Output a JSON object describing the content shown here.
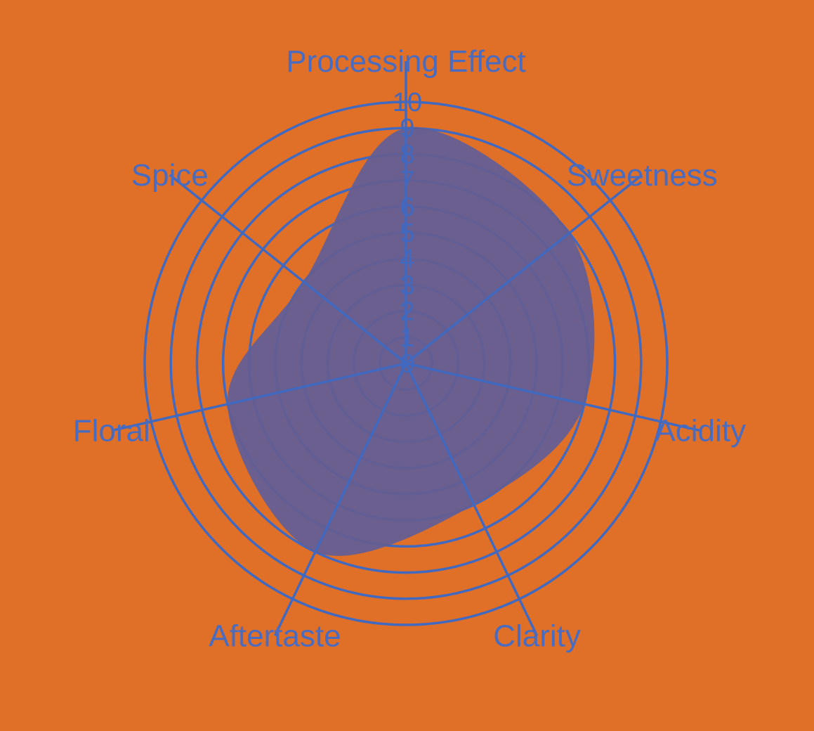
{
  "chart_data": {
    "type": "radar",
    "title": "",
    "categories": [
      "Processing Effect",
      "Sweetness",
      "Acidity",
      "Clarity",
      "Aftertaste",
      "Floral",
      "Spice"
    ],
    "series": [
      {
        "values": [
          9,
          8,
          7,
          6,
          8,
          7,
          5
        ]
      }
    ],
    "radial_range": [
      0,
      10
    ],
    "radial_ticks": [
      "0",
      "1",
      "2",
      "3",
      "4",
      "5",
      "6",
      "7",
      "8",
      "9",
      "10"
    ],
    "line_shape": "smoothed",
    "grid": true,
    "legend": "none",
    "colors": {
      "background": "#e07027",
      "grid": "#4169c0",
      "fill": "#635e93",
      "text": "#4a6cc0"
    }
  }
}
